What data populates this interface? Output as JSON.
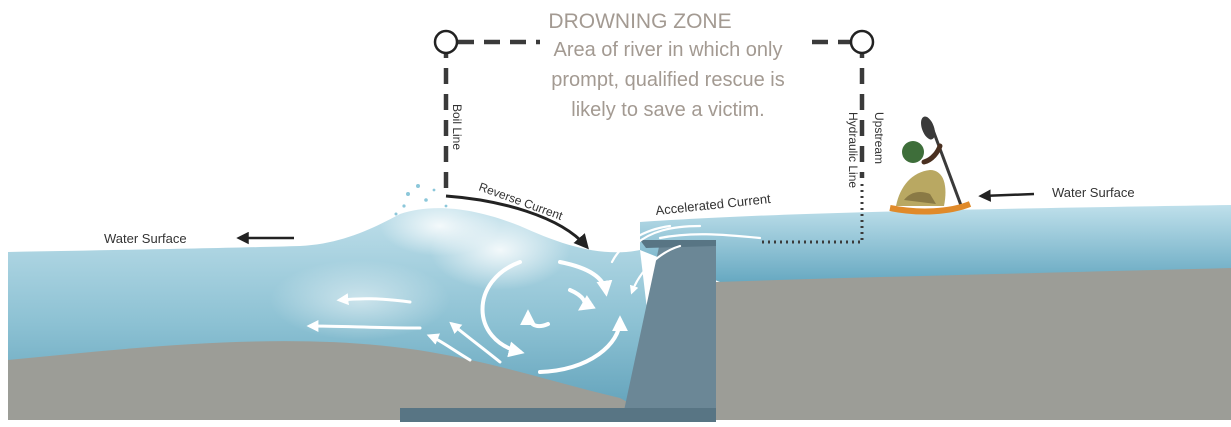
{
  "title": "DROWNING ZONE",
  "description_lines": [
    "Area of river in which only",
    "prompt, qualified rescue is",
    "likely to save a victim."
  ],
  "labels": {
    "boil_line": "Boil Line",
    "upstream_line_1": "Upstream",
    "upstream_line_2": "Hydraulic Line",
    "reverse_current": "Reverse Current",
    "accelerated_current": "Accelerated Current",
    "water_surface_left": "Water Surface",
    "water_surface_right": "Water Surface"
  },
  "colors": {
    "title": "#a39a92",
    "water_light": "#cfe6ee",
    "water_mid": "#8fc3d5",
    "water_deep": "#5fa2bb",
    "riverbed": "#9c9d97",
    "dam": "#6b8796",
    "dam_dark": "#587584",
    "dashed_line": "#3a3a3a",
    "text_dark": "#333333"
  },
  "icons": [
    "kayaker-icon",
    "paddle-icon",
    "circle-marker-icon",
    "arrow-left-icon"
  ]
}
